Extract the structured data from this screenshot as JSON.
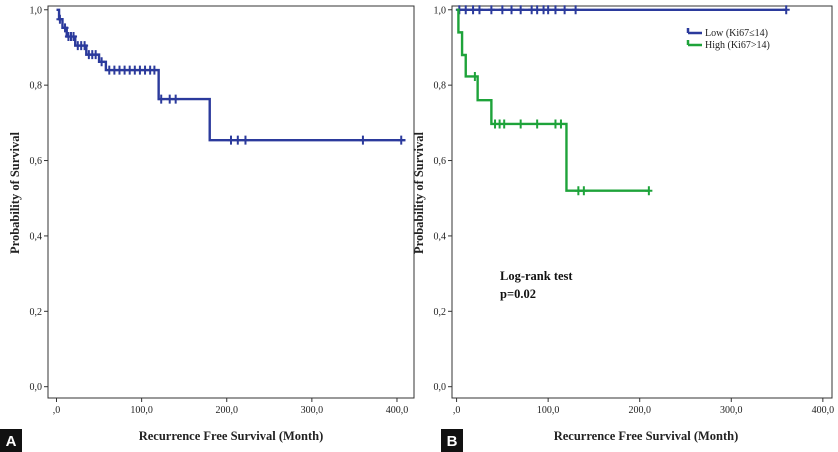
{
  "chart_data": [
    {
      "panel_label": "A",
      "type": "line",
      "step": true,
      "xlabel": "Recurrence Free Survival (Month)",
      "ylabel": "Probability of Survival",
      "xlim": [
        -10,
        420
      ],
      "ylim": [
        -0.03,
        1.01
      ],
      "xticks": [
        0,
        100,
        200,
        300,
        400
      ],
      "xtick_labels": [
        ",0",
        "100,0",
        "200,0",
        "300,0",
        "400,0"
      ],
      "yticks": [
        0,
        0.2,
        0.4,
        0.6,
        0.8,
        1.0
      ],
      "ytick_labels": [
        "0,0",
        "0,2",
        "0,4",
        "0,6",
        "0,8",
        "1,0"
      ],
      "series": [
        {
          "color": "#2b3a9c",
          "steps": [
            [
              0,
              1.0
            ],
            [
              3,
              0.975
            ],
            [
              7,
              0.952
            ],
            [
              12,
              0.929
            ],
            [
              22,
              0.905
            ],
            [
              35,
              0.881
            ],
            [
              50,
              0.862
            ],
            [
              58,
              0.84
            ],
            [
              120,
              0.763
            ],
            [
              180,
              0.654
            ],
            [
              410,
              0.654
            ]
          ],
          "censored": [
            [
              4,
              0.975
            ],
            [
              10,
              0.952
            ],
            [
              14,
              0.929
            ],
            [
              17,
              0.929
            ],
            [
              20,
              0.929
            ],
            [
              25,
              0.905
            ],
            [
              29,
              0.905
            ],
            [
              33,
              0.905
            ],
            [
              38,
              0.881
            ],
            [
              42,
              0.881
            ],
            [
              46,
              0.881
            ],
            [
              53,
              0.862
            ],
            [
              62,
              0.84
            ],
            [
              68,
              0.84
            ],
            [
              74,
              0.84
            ],
            [
              80,
              0.84
            ],
            [
              86,
              0.84
            ],
            [
              92,
              0.84
            ],
            [
              98,
              0.84
            ],
            [
              104,
              0.84
            ],
            [
              110,
              0.84
            ],
            [
              115,
              0.84
            ],
            [
              123,
              0.763
            ],
            [
              133,
              0.763
            ],
            [
              140,
              0.763
            ],
            [
              205,
              0.654
            ],
            [
              213,
              0.654
            ],
            [
              222,
              0.654
            ],
            [
              360,
              0.654
            ],
            [
              405,
              0.654
            ]
          ]
        }
      ]
    },
    {
      "panel_label": "B",
      "type": "line",
      "step": true,
      "xlabel": "Recurrence Free Survival (Month)",
      "ylabel": "Probability of Survival",
      "xlim": [
        -5,
        410
      ],
      "ylim": [
        -0.03,
        1.01
      ],
      "xticks": [
        0,
        100,
        200,
        300,
        400
      ],
      "xtick_labels": [
        ",0",
        "100,0",
        "200,0",
        "300,0",
        "400,0"
      ],
      "yticks": [
        0,
        0.2,
        0.4,
        0.6,
        0.8,
        1.0
      ],
      "ytick_labels": [
        "0,0",
        "0,2",
        "0,4",
        "0,6",
        "0,8",
        "1,0"
      ],
      "legend_position": "top-right",
      "annotation": [
        "Log-rank test",
        "p=0.02"
      ],
      "series": [
        {
          "name": "Low (Ki67≤14)",
          "color": "#2b3a9c",
          "steps": [
            [
              0,
              1.0
            ],
            [
              360,
              1.0
            ]
          ],
          "censored": [
            [
              3,
              1.0
            ],
            [
              10,
              1.0
            ],
            [
              18,
              1.0
            ],
            [
              25,
              1.0
            ],
            [
              38,
              1.0
            ],
            [
              50,
              1.0
            ],
            [
              60,
              1.0
            ],
            [
              70,
              1.0
            ],
            [
              82,
              1.0
            ],
            [
              88,
              1.0
            ],
            [
              95,
              1.0
            ],
            [
              100,
              1.0
            ],
            [
              108,
              1.0
            ],
            [
              118,
              1.0
            ],
            [
              130,
              1.0
            ],
            [
              360,
              1.0
            ]
          ]
        },
        {
          "name": "High (Ki67>14)",
          "color": "#1ea33a",
          "steps": [
            [
              0,
              1.0
            ],
            [
              2,
              0.94
            ],
            [
              6,
              0.88
            ],
            [
              10,
              0.823
            ],
            [
              23,
              0.76
            ],
            [
              38,
              0.697
            ],
            [
              120,
              0.52
            ],
            [
              210,
              0.52
            ]
          ],
          "censored": [
            [
              20,
              0.823
            ],
            [
              42,
              0.697
            ],
            [
              47,
              0.697
            ],
            [
              52,
              0.697
            ],
            [
              70,
              0.697
            ],
            [
              88,
              0.697
            ],
            [
              108,
              0.697
            ],
            [
              114,
              0.697
            ],
            [
              133,
              0.52
            ],
            [
              139,
              0.52
            ],
            [
              210,
              0.52
            ]
          ]
        }
      ]
    }
  ]
}
